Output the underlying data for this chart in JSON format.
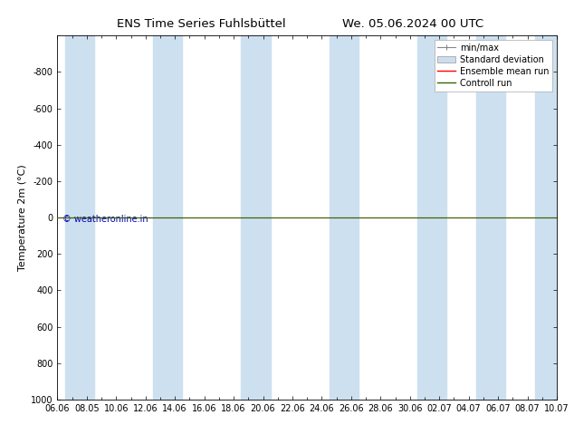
{
  "title_left": "ENS Time Series Fuhlsbüttel",
  "title_right": "We. 05.06.2024 00 UTC",
  "ylabel": "Temperature 2m (°C)",
  "ylim_display": [
    -1000,
    1000
  ],
  "yticks": [
    -800,
    -600,
    -400,
    -200,
    0,
    200,
    400,
    600,
    800,
    1000
  ],
  "xtick_labels": [
    "06.06",
    "08.05",
    "10.06",
    "12.06",
    "14.06",
    "16.06",
    "18.06",
    "20.06",
    "22.06",
    "24.06",
    "26.06",
    "28.06",
    "30.06",
    "02.07",
    "04.07",
    "06.07",
    "08.07",
    "10.07"
  ],
  "band_color": "#cce0f0",
  "control_run_color": "#336600",
  "ensemble_mean_color": "#ff0000",
  "watermark": "© weatheronline.in",
  "watermark_color": "#0000bb",
  "background_color": "#ffffff",
  "legend_items": [
    "min/max",
    "Standard deviation",
    "Ensemble mean run",
    "Controll run"
  ],
  "legend_colors": [
    "#888888",
    "#ccddee",
    "#ff0000",
    "#336600"
  ],
  "title_fontsize": 9.5,
  "axis_fontsize": 8,
  "tick_fontsize": 7,
  "legend_fontsize": 7
}
